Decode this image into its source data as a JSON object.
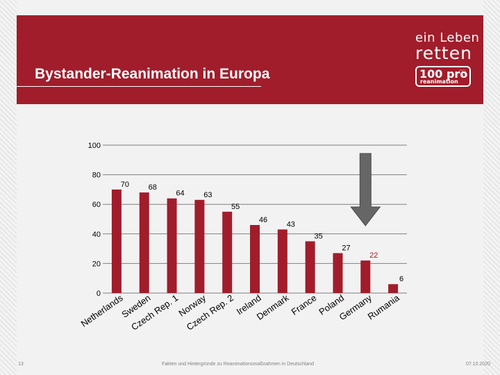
{
  "slide": {
    "title": "Bystander-Reanimation in Europa",
    "page_number": "13",
    "footer_text": "Fakten und Hintergründe zu Reanimationsmaßnahmen in Deutschland",
    "date": "07.10.2020"
  },
  "logo": {
    "line1": "ein Leben",
    "line2": "retten",
    "box_main": "100 pro",
    "box_sub": "reanimation",
    "heart_icon": "heart-icon"
  },
  "colors": {
    "header": "#a11d2b",
    "bar": "#a11d2b",
    "highlight_label": "#a11d2b",
    "arrow": "#666666"
  },
  "chart_data": {
    "type": "bar",
    "title": "",
    "xlabel": "",
    "ylabel": "",
    "ylim": [
      0,
      100
    ],
    "yticks": [
      0,
      20,
      40,
      60,
      80,
      100
    ],
    "grid": true,
    "categories": [
      "Netherlands",
      "Sweden",
      "Czech Rep. 1",
      "Norway",
      "Czech Rep. 2",
      "Ireland",
      "Denmark",
      "France",
      "Poland",
      "Germany",
      "Rumania"
    ],
    "values": [
      70,
      68,
      64,
      63,
      55,
      46,
      43,
      35,
      27,
      22,
      6
    ],
    "highlight_category": "Germany",
    "annotations": [
      {
        "type": "arrow",
        "direction": "down",
        "target": "Germany"
      }
    ]
  }
}
